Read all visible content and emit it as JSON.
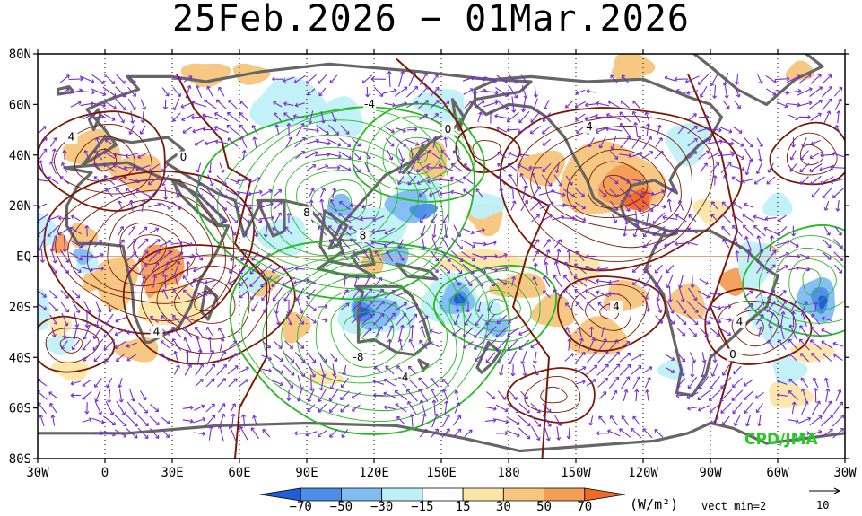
{
  "title": "25Feb.2026 − 01Mar.2026",
  "credit": "CPD/JMA",
  "lat_labels": [
    "80N",
    "60N",
    "40N",
    "20N",
    "EQ",
    "20S",
    "40S",
    "60S",
    "80S"
  ],
  "lon_labels": [
    "30W",
    "0",
    "30E",
    "60E",
    "90E",
    "120E",
    "150E",
    "180",
    "150W",
    "120W",
    "90W",
    "60W",
    "30W"
  ],
  "colorbar": {
    "labels": [
      "−70",
      "−50",
      "−30",
      "−15",
      "15",
      "30",
      "50",
      "70"
    ],
    "colors": [
      "#1e5fd8",
      "#4d8fe8",
      "#7ebcf2",
      "#bff0f8",
      "#ffffff",
      "#fbe5a6",
      "#f7c57c",
      "#f39d55",
      "#f06a26"
    ],
    "units": "(W/m²)"
  },
  "vector_legend": {
    "vect_min": "vect_min=2",
    "reference": "10"
  },
  "contour_labels": [
    {
      "text": "-4",
      "lon": 148,
      "lat": 60
    },
    {
      "text": "4",
      "lon": 15,
      "lat": 47
    },
    {
      "text": "0",
      "lon": 65,
      "lat": 39
    },
    {
      "text": "0",
      "lon": 183,
      "lat": 50
    },
    {
      "text": "4",
      "lon": 246,
      "lat": 51
    },
    {
      "text": "8",
      "lon": 120,
      "lat": 17
    },
    {
      "text": "8",
      "lon": 145,
      "lat": 8
    },
    {
      "text": "4",
      "lon": 258,
      "lat": -20
    },
    {
      "text": "4",
      "lon": 313,
      "lat": -26
    },
    {
      "text": "0",
      "lon": 310,
      "lat": -39
    },
    {
      "text": "-8",
      "lon": 143,
      "lat": -40
    },
    {
      "text": "-4",
      "lon": 163,
      "lat": -48
    },
    {
      "text": "4",
      "lon": 53,
      "lat": -30
    }
  ],
  "colors": {
    "coast": "#666666",
    "positive_contour": "#7a1a05",
    "negative_contour": "#22bb22",
    "vector": "#7a2bd0"
  }
}
